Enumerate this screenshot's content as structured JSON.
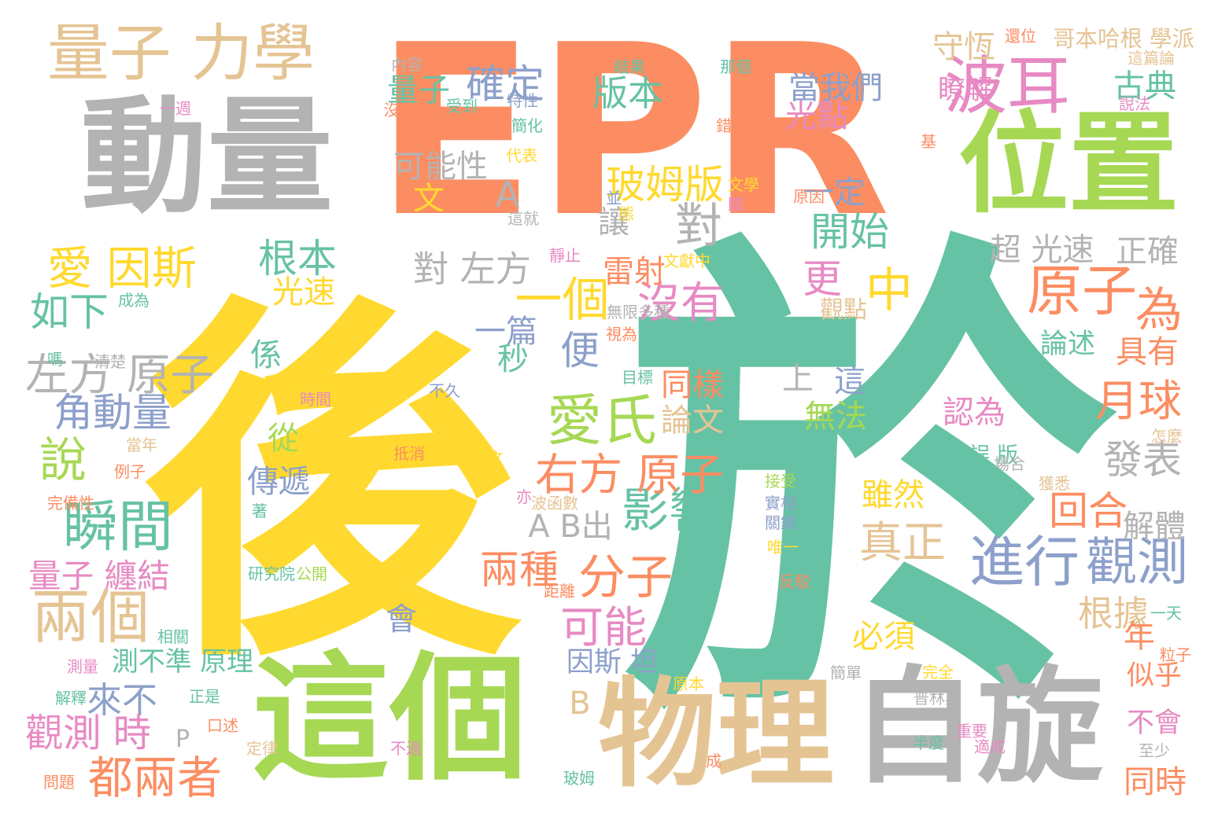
{
  "palette": {
    "orange": "#fc8d62",
    "teal": "#66c2a5",
    "yellow": "#ffd92f",
    "green": "#a6d854",
    "gray": "#b3b3b3",
    "tan": "#e5c494",
    "pink": "#e78ac3",
    "blue": "#8da0cb",
    "background": "#ffffff"
  },
  "words": [
    {
      "text": "EPR",
      "color": "orange"
    },
    {
      "text": "後",
      "color": "yellow"
    },
    {
      "text": "於",
      "color": "teal"
    },
    {
      "text": "動量",
      "color": "gray"
    },
    {
      "text": "這個",
      "color": "green"
    },
    {
      "text": "物理",
      "color": "tan"
    },
    {
      "text": "自旋",
      "color": "gray"
    },
    {
      "text": "位置",
      "color": "green"
    },
    {
      "text": "量子 力學",
      "color": "tan"
    },
    {
      "text": "波耳",
      "color": "pink"
    },
    {
      "text": "愛氏",
      "color": "green"
    },
    {
      "text": "愛 因斯",
      "color": "yellow"
    },
    {
      "text": "兩個",
      "color": "tan"
    },
    {
      "text": "瞬間",
      "color": "teal"
    },
    {
      "text": "進行",
      "color": "blue"
    },
    {
      "text": "觀測",
      "color": "blue"
    },
    {
      "text": "影響",
      "color": "teal"
    },
    {
      "text": "分子",
      "color": "orange"
    },
    {
      "text": "右方 原子",
      "color": "orange"
    },
    {
      "text": "原子",
      "color": "orange"
    },
    {
      "text": "一個",
      "color": "yellow"
    },
    {
      "text": "沒有",
      "color": "pink"
    },
    {
      "text": "便",
      "color": "blue"
    },
    {
      "text": "中",
      "color": "yellow"
    },
    {
      "text": "版本",
      "color": "teal"
    },
    {
      "text": "玻姆版",
      "color": "yellow"
    },
    {
      "text": "對",
      "color": "gray"
    },
    {
      "text": "A",
      "color": "gray"
    },
    {
      "text": "確定",
      "color": "blue"
    },
    {
      "text": "量子",
      "color": "teal"
    },
    {
      "text": "可能性",
      "color": "gray"
    },
    {
      "text": "文",
      "color": "yellow"
    },
    {
      "text": "對 左方",
      "color": "gray"
    },
    {
      "text": "根本",
      "color": "teal"
    },
    {
      "text": "如下",
      "color": "teal"
    },
    {
      "text": "光速",
      "color": "yellow"
    },
    {
      "text": "左方 原子",
      "color": "gray"
    },
    {
      "text": "角動量",
      "color": "blue"
    },
    {
      "text": "說",
      "color": "green"
    },
    {
      "text": "量子 纏結",
      "color": "pink"
    },
    {
      "text": "來不",
      "color": "blue"
    },
    {
      "text": "觀測 時",
      "color": "pink"
    },
    {
      "text": "都兩者",
      "color": "orange"
    },
    {
      "text": "P",
      "color": "gray"
    },
    {
      "text": "測不準 原理",
      "color": "teal"
    },
    {
      "text": "因斯 坦",
      "color": "blue"
    },
    {
      "text": "會",
      "color": "blue"
    },
    {
      "text": "可能",
      "color": "pink"
    },
    {
      "text": "兩種",
      "color": "orange"
    },
    {
      "text": "A B出",
      "color": "gray"
    },
    {
      "text": "傳遞",
      "color": "blue"
    },
    {
      "text": "從",
      "color": "green"
    },
    {
      "text": "係",
      "color": "teal"
    },
    {
      "text": "同樣",
      "color": "orange"
    },
    {
      "text": "論文",
      "color": "tan"
    },
    {
      "text": "一篇",
      "color": "blue"
    },
    {
      "text": "秒",
      "color": "teal"
    },
    {
      "text": "雷射",
      "color": "orange"
    },
    {
      "text": "讓",
      "color": "gray"
    },
    {
      "text": "一定",
      "color": "blue"
    },
    {
      "text": "開始",
      "color": "teal"
    },
    {
      "text": "更",
      "color": "pink"
    },
    {
      "text": "觀點",
      "color": "tan"
    },
    {
      "text": "上",
      "color": "gray"
    },
    {
      "text": "這",
      "color": "blue"
    },
    {
      "text": "無法",
      "color": "green"
    },
    {
      "text": "論述",
      "color": "teal"
    },
    {
      "text": "具有",
      "color": "orange"
    },
    {
      "text": "為",
      "color": "orange"
    },
    {
      "text": "月球",
      "color": "orange"
    },
    {
      "text": "認為",
      "color": "pink"
    },
    {
      "text": "錯誤 版",
      "color": "teal"
    },
    {
      "text": "發表",
      "color": "gray"
    },
    {
      "text": "雖然",
      "color": "yellow"
    },
    {
      "text": "真正",
      "color": "tan"
    },
    {
      "text": "回合",
      "color": "orange"
    },
    {
      "text": "解體",
      "color": "gray"
    },
    {
      "text": "根據",
      "color": "tan"
    },
    {
      "text": "必須",
      "color": "yellow"
    },
    {
      "text": "年",
      "color": "orange"
    },
    {
      "text": "似乎",
      "color": "orange"
    },
    {
      "text": "不會",
      "color": "pink"
    },
    {
      "text": "同時",
      "color": "orange"
    },
    {
      "text": "超 光速",
      "color": "gray"
    },
    {
      "text": "正確",
      "color": "gray"
    },
    {
      "text": "當我們",
      "color": "blue"
    },
    {
      "text": "光點",
      "color": "pink"
    },
    {
      "text": "守恆",
      "color": "tan"
    },
    {
      "text": "瞭解",
      "color": "pink"
    },
    {
      "text": "古典",
      "color": "teal"
    },
    {
      "text": "B",
      "color": "tan"
    },
    {
      "text": "哥本哈根 學派",
      "color": "tan"
    },
    {
      "text": "還位",
      "color": "orange"
    },
    {
      "text": "這篇論",
      "color": "tan"
    },
    {
      "text": "說法",
      "color": "pink"
    },
    {
      "text": "結果",
      "color": "teal"
    },
    {
      "text": "那個",
      "color": "teal"
    },
    {
      "text": "內容",
      "color": "gray"
    },
    {
      "text": "特性",
      "color": "blue"
    },
    {
      "text": "受到",
      "color": "teal"
    },
    {
      "text": "沒",
      "color": "orange"
    },
    {
      "text": "一週",
      "color": "pink"
    },
    {
      "text": "簡化",
      "color": "teal"
    },
    {
      "text": "代表",
      "color": "yellow"
    },
    {
      "text": "錯誤",
      "color": "orange"
    },
    {
      "text": "原因",
      "color": "orange"
    },
    {
      "text": "文學",
      "color": "yellow"
    },
    {
      "text": "並",
      "color": "blue"
    },
    {
      "text": "態",
      "color": "yellow"
    },
    {
      "text": "這就",
      "color": "gray"
    },
    {
      "text": "靜止",
      "color": "pink"
    },
    {
      "text": "文獻中",
      "color": "yellow"
    },
    {
      "text": "成為",
      "color": "teal"
    },
    {
      "text": "無限多種",
      "color": "gray"
    },
    {
      "text": "視為",
      "color": "orange"
    },
    {
      "text": "目標",
      "color": "teal"
    },
    {
      "text": "清楚",
      "color": "gray"
    },
    {
      "text": "嗎",
      "color": "teal"
    },
    {
      "text": "時間",
      "color": "pink"
    },
    {
      "text": "當年",
      "color": "tan"
    },
    {
      "text": "例子",
      "color": "orange"
    },
    {
      "text": "不久",
      "color": "blue"
    },
    {
      "text": "抵消",
      "color": "orange"
    },
    {
      "text": "這篇論文",
      "color": "yellow"
    },
    {
      "text": "完備性",
      "color": "orange"
    },
    {
      "text": "波函數",
      "color": "tan"
    },
    {
      "text": "亦",
      "color": "pink"
    },
    {
      "text": "著",
      "color": "teal"
    },
    {
      "text": "研究院",
      "color": "teal"
    },
    {
      "text": "公開",
      "color": "green"
    },
    {
      "text": "距離",
      "color": "orange"
    },
    {
      "text": "測量",
      "color": "pink"
    },
    {
      "text": "解釋",
      "color": "teal"
    },
    {
      "text": "正是",
      "color": "teal"
    },
    {
      "text": "口述",
      "color": "orange"
    },
    {
      "text": "定律",
      "color": "tan"
    },
    {
      "text": "不過",
      "color": "pink"
    },
    {
      "text": "玻姆",
      "color": "teal"
    },
    {
      "text": "原本",
      "color": "yellow"
    },
    {
      "text": "問題",
      "color": "orange"
    },
    {
      "text": "接受",
      "color": "green"
    },
    {
      "text": "實相",
      "color": "blue"
    },
    {
      "text": "關鍵",
      "color": "blue"
    },
    {
      "text": "唯一",
      "color": "yellow"
    },
    {
      "text": "反駁",
      "color": "orange"
    },
    {
      "text": "一天",
      "color": "teal"
    },
    {
      "text": "完全",
      "color": "yellow"
    },
    {
      "text": "簡單",
      "color": "gray"
    },
    {
      "text": "普林斯",
      "color": "gray"
    },
    {
      "text": "粒子",
      "color": "orange"
    },
    {
      "text": "場合",
      "color": "gray"
    },
    {
      "text": "獲悉",
      "color": "tan"
    },
    {
      "text": "怎麼",
      "color": "tan"
    },
    {
      "text": "重要",
      "color": "pink"
    },
    {
      "text": "半度",
      "color": "teal"
    },
    {
      "text": "適成",
      "color": "pink"
    },
    {
      "text": "至少",
      "color": "gray"
    },
    {
      "text": "成",
      "color": "orange"
    },
    {
      "text": "相關",
      "color": "teal"
    },
    {
      "text": "基",
      "color": "orange"
    },
    {
      "text": "關",
      "color": "pink"
    }
  ]
}
